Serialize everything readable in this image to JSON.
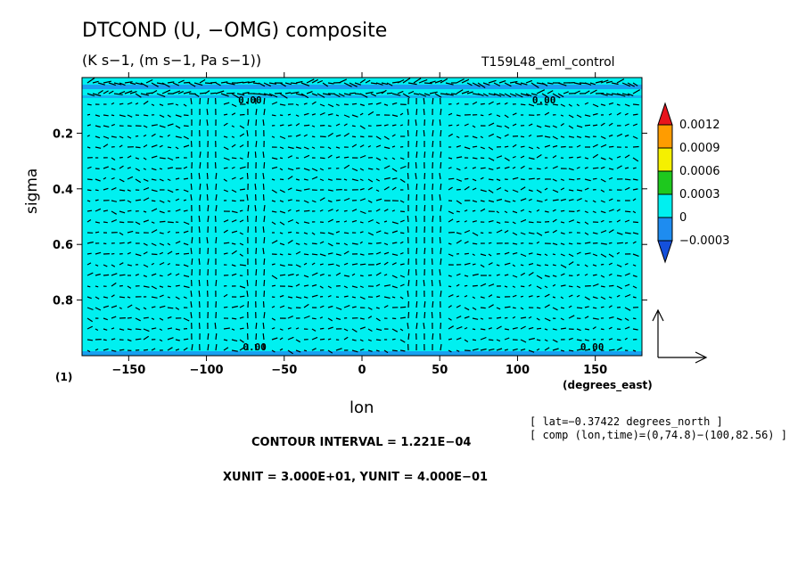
{
  "header": {
    "title": "DTCOND (U, −OMG) composite",
    "subtitle": "(K s−1, (m s−1, Pa s−1))",
    "experiment": "T159L48_eml_control",
    "figure_number": "(1)"
  },
  "info": {
    "lat_line": "[ lat=−0.37422 degrees_north ]",
    "comp_line": "[ comp (lon,time)=(0,74.8)−(100,82.56) ]",
    "contour_interval": "CONTOUR INTERVAL = 1.221E−04",
    "units": "XUNIT = 3.000E+01, YUNIT = 4.000E−01"
  },
  "chart_data": {
    "type": "heatmap",
    "title": "DTCOND (U, −OMG) composite",
    "xlabel": "lon",
    "xunit": "(degrees_east)",
    "ylabel": "sigma",
    "xlim": [
      -180,
      180
    ],
    "ylim": [
      1.0,
      0.0
    ],
    "x_ticks": [
      -150,
      -100,
      -50,
      0,
      50,
      100,
      150
    ],
    "x_tick_labels": [
      "−150",
      "−100",
      "−50",
      "0",
      "50",
      "100",
      "150"
    ],
    "y_ticks": [
      0.2,
      0.4,
      0.6,
      0.8
    ],
    "y_tick_labels": [
      "0.2",
      "0.4",
      "0.6",
      "0.8"
    ],
    "contour_labels": [
      {
        "text": "0.00",
        "lon": -72,
        "sigma": 0.01
      },
      {
        "text": "0.00",
        "lon": 117,
        "sigma": 0.01
      },
      {
        "text": "0.00",
        "lon": -69,
        "sigma": 0.98
      },
      {
        "text": "0.00",
        "lon": 148,
        "sigma": 0.98
      }
    ],
    "dominant_value": 0,
    "vector_reference": {
      "xunit": 30.0,
      "yunit": 0.4
    },
    "colorbar": {
      "labels": [
        "0.0012",
        "0.0009",
        "0.0006",
        "0.0003",
        "0",
        "−0.0003"
      ],
      "colors": [
        "#e8141c",
        "#ff9c00",
        "#f5f000",
        "#1ec81e",
        "#00f0f0",
        "#1e8cf0",
        "#1450dc"
      ]
    }
  }
}
